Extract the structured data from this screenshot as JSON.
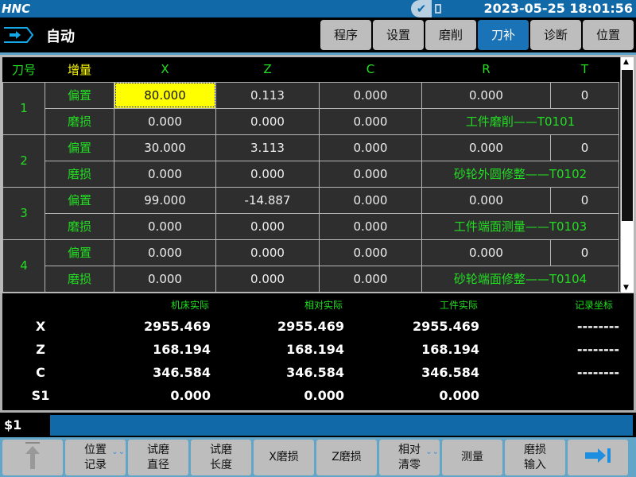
{
  "topbar": {
    "logo": "HNC",
    "datetime": "2023-05-25 18:01:56",
    "status_icon": "check-icon"
  },
  "mode": {
    "label": "自动",
    "icon": "auto-arrow-icon"
  },
  "tabs": [
    {
      "label": "程序"
    },
    {
      "label": "设置"
    },
    {
      "label": "磨削"
    },
    {
      "label": "刀补",
      "active": true
    },
    {
      "label": "诊断"
    },
    {
      "label": "位置"
    }
  ],
  "table": {
    "headers": [
      "刀号",
      "增量",
      "X",
      "Z",
      "C",
      "R",
      "T"
    ],
    "tools": [
      {
        "no": "1",
        "offset": {
          "label": "偏置",
          "x": "80.000",
          "z": "0.113",
          "c": "0.000",
          "r": "0.000",
          "t": "0"
        },
        "wear": {
          "label": "磨损",
          "x": "0.000",
          "z": "0.000",
          "c": "0.000",
          "name": "工件磨削——T0101"
        }
      },
      {
        "no": "2",
        "offset": {
          "label": "偏置",
          "x": "30.000",
          "z": "3.113",
          "c": "0.000",
          "r": "0.000",
          "t": "0"
        },
        "wear": {
          "label": "磨损",
          "x": "0.000",
          "z": "0.000",
          "c": "0.000",
          "name": "砂轮外圆修整——T0102"
        }
      },
      {
        "no": "3",
        "offset": {
          "label": "偏置",
          "x": "99.000",
          "z": "-14.887",
          "c": "0.000",
          "r": "0.000",
          "t": "0"
        },
        "wear": {
          "label": "磨损",
          "x": "0.000",
          "z": "0.000",
          "c": "0.000",
          "name": "工件端面测量——T0103"
        }
      },
      {
        "no": "4",
        "offset": {
          "label": "偏置",
          "x": "0.000",
          "z": "0.000",
          "c": "0.000",
          "r": "0.000",
          "t": "0"
        },
        "wear": {
          "label": "磨损",
          "x": "0.000",
          "z": "0.000",
          "c": "0.000",
          "name": "砂轮端面修整——T0104"
        }
      }
    ]
  },
  "position": {
    "headers": [
      "机床实际",
      "相对实际",
      "工件实际",
      "记录坐标"
    ],
    "rows": [
      {
        "axis": "X",
        "vals": [
          "2955.469",
          "2955.469",
          "2955.469",
          "--------"
        ]
      },
      {
        "axis": "Z",
        "vals": [
          "168.194",
          "168.194",
          "168.194",
          "--------"
        ]
      },
      {
        "axis": "C",
        "vals": [
          "346.584",
          "346.584",
          "346.584",
          "--------"
        ]
      },
      {
        "axis": "S1",
        "vals": [
          "0.000",
          "0.000",
          "0.000",
          ""
        ]
      }
    ]
  },
  "command": {
    "prompt": "$1",
    "value": ""
  },
  "softkeys": [
    {
      "label": "",
      "icon": "up-arrow-icon"
    },
    {
      "label": "位置\n记录",
      "more": true
    },
    {
      "label": "试磨\n直径"
    },
    {
      "label": "试磨\n长度"
    },
    {
      "label": "X磨损"
    },
    {
      "label": "Z磨损"
    },
    {
      "label": "相对\n清零",
      "more": true
    },
    {
      "label": "测量"
    },
    {
      "label": "磨损\n输入"
    },
    {
      "label": "",
      "icon": "next-page-arrow-icon"
    }
  ]
}
